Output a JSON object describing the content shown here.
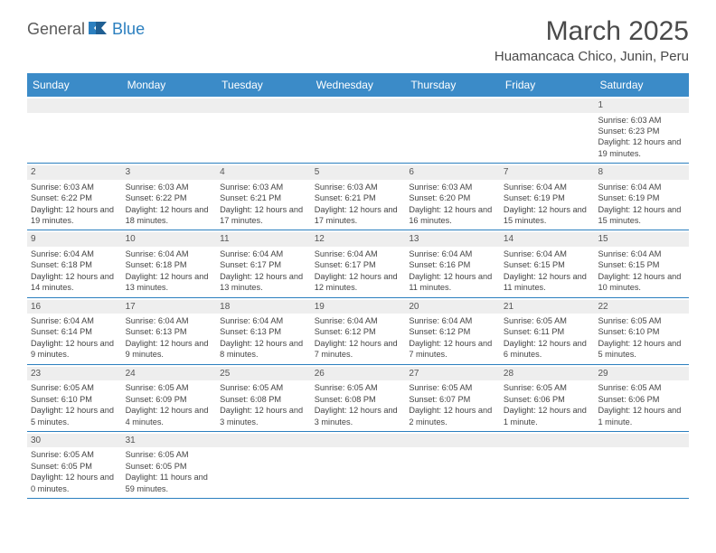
{
  "brand": {
    "part1": "General",
    "part2": "Blue"
  },
  "title": "March 2025",
  "location": "Huamancaca Chico, Junin, Peru",
  "colors": {
    "header_bg": "#3b8bc8",
    "header_text": "#ffffff",
    "rule": "#2b7fbf",
    "numrow_bg": "#eeeeee",
    "text": "#444444",
    "logo_gray": "#5a5a5a",
    "logo_blue": "#2b7fbf"
  },
  "dayNames": [
    "Sunday",
    "Monday",
    "Tuesday",
    "Wednesday",
    "Thursday",
    "Friday",
    "Saturday"
  ],
  "weeks": [
    [
      {
        "n": "",
        "sr": "",
        "ss": "",
        "dl": ""
      },
      {
        "n": "",
        "sr": "",
        "ss": "",
        "dl": ""
      },
      {
        "n": "",
        "sr": "",
        "ss": "",
        "dl": ""
      },
      {
        "n": "",
        "sr": "",
        "ss": "",
        "dl": ""
      },
      {
        "n": "",
        "sr": "",
        "ss": "",
        "dl": ""
      },
      {
        "n": "",
        "sr": "",
        "ss": "",
        "dl": ""
      },
      {
        "n": "1",
        "sr": "Sunrise: 6:03 AM",
        "ss": "Sunset: 6:23 PM",
        "dl": "Daylight: 12 hours and 19 minutes."
      }
    ],
    [
      {
        "n": "2",
        "sr": "Sunrise: 6:03 AM",
        "ss": "Sunset: 6:22 PM",
        "dl": "Daylight: 12 hours and 19 minutes."
      },
      {
        "n": "3",
        "sr": "Sunrise: 6:03 AM",
        "ss": "Sunset: 6:22 PM",
        "dl": "Daylight: 12 hours and 18 minutes."
      },
      {
        "n": "4",
        "sr": "Sunrise: 6:03 AM",
        "ss": "Sunset: 6:21 PM",
        "dl": "Daylight: 12 hours and 17 minutes."
      },
      {
        "n": "5",
        "sr": "Sunrise: 6:03 AM",
        "ss": "Sunset: 6:21 PM",
        "dl": "Daylight: 12 hours and 17 minutes."
      },
      {
        "n": "6",
        "sr": "Sunrise: 6:03 AM",
        "ss": "Sunset: 6:20 PM",
        "dl": "Daylight: 12 hours and 16 minutes."
      },
      {
        "n": "7",
        "sr": "Sunrise: 6:04 AM",
        "ss": "Sunset: 6:19 PM",
        "dl": "Daylight: 12 hours and 15 minutes."
      },
      {
        "n": "8",
        "sr": "Sunrise: 6:04 AM",
        "ss": "Sunset: 6:19 PM",
        "dl": "Daylight: 12 hours and 15 minutes."
      }
    ],
    [
      {
        "n": "9",
        "sr": "Sunrise: 6:04 AM",
        "ss": "Sunset: 6:18 PM",
        "dl": "Daylight: 12 hours and 14 minutes."
      },
      {
        "n": "10",
        "sr": "Sunrise: 6:04 AM",
        "ss": "Sunset: 6:18 PM",
        "dl": "Daylight: 12 hours and 13 minutes."
      },
      {
        "n": "11",
        "sr": "Sunrise: 6:04 AM",
        "ss": "Sunset: 6:17 PM",
        "dl": "Daylight: 12 hours and 13 minutes."
      },
      {
        "n": "12",
        "sr": "Sunrise: 6:04 AM",
        "ss": "Sunset: 6:17 PM",
        "dl": "Daylight: 12 hours and 12 minutes."
      },
      {
        "n": "13",
        "sr": "Sunrise: 6:04 AM",
        "ss": "Sunset: 6:16 PM",
        "dl": "Daylight: 12 hours and 11 minutes."
      },
      {
        "n": "14",
        "sr": "Sunrise: 6:04 AM",
        "ss": "Sunset: 6:15 PM",
        "dl": "Daylight: 12 hours and 11 minutes."
      },
      {
        "n": "15",
        "sr": "Sunrise: 6:04 AM",
        "ss": "Sunset: 6:15 PM",
        "dl": "Daylight: 12 hours and 10 minutes."
      }
    ],
    [
      {
        "n": "16",
        "sr": "Sunrise: 6:04 AM",
        "ss": "Sunset: 6:14 PM",
        "dl": "Daylight: 12 hours and 9 minutes."
      },
      {
        "n": "17",
        "sr": "Sunrise: 6:04 AM",
        "ss": "Sunset: 6:13 PM",
        "dl": "Daylight: 12 hours and 9 minutes."
      },
      {
        "n": "18",
        "sr": "Sunrise: 6:04 AM",
        "ss": "Sunset: 6:13 PM",
        "dl": "Daylight: 12 hours and 8 minutes."
      },
      {
        "n": "19",
        "sr": "Sunrise: 6:04 AM",
        "ss": "Sunset: 6:12 PM",
        "dl": "Daylight: 12 hours and 7 minutes."
      },
      {
        "n": "20",
        "sr": "Sunrise: 6:04 AM",
        "ss": "Sunset: 6:12 PM",
        "dl": "Daylight: 12 hours and 7 minutes."
      },
      {
        "n": "21",
        "sr": "Sunrise: 6:05 AM",
        "ss": "Sunset: 6:11 PM",
        "dl": "Daylight: 12 hours and 6 minutes."
      },
      {
        "n": "22",
        "sr": "Sunrise: 6:05 AM",
        "ss": "Sunset: 6:10 PM",
        "dl": "Daylight: 12 hours and 5 minutes."
      }
    ],
    [
      {
        "n": "23",
        "sr": "Sunrise: 6:05 AM",
        "ss": "Sunset: 6:10 PM",
        "dl": "Daylight: 12 hours and 5 minutes."
      },
      {
        "n": "24",
        "sr": "Sunrise: 6:05 AM",
        "ss": "Sunset: 6:09 PM",
        "dl": "Daylight: 12 hours and 4 minutes."
      },
      {
        "n": "25",
        "sr": "Sunrise: 6:05 AM",
        "ss": "Sunset: 6:08 PM",
        "dl": "Daylight: 12 hours and 3 minutes."
      },
      {
        "n": "26",
        "sr": "Sunrise: 6:05 AM",
        "ss": "Sunset: 6:08 PM",
        "dl": "Daylight: 12 hours and 3 minutes."
      },
      {
        "n": "27",
        "sr": "Sunrise: 6:05 AM",
        "ss": "Sunset: 6:07 PM",
        "dl": "Daylight: 12 hours and 2 minutes."
      },
      {
        "n": "28",
        "sr": "Sunrise: 6:05 AM",
        "ss": "Sunset: 6:06 PM",
        "dl": "Daylight: 12 hours and 1 minute."
      },
      {
        "n": "29",
        "sr": "Sunrise: 6:05 AM",
        "ss": "Sunset: 6:06 PM",
        "dl": "Daylight: 12 hours and 1 minute."
      }
    ],
    [
      {
        "n": "30",
        "sr": "Sunrise: 6:05 AM",
        "ss": "Sunset: 6:05 PM",
        "dl": "Daylight: 12 hours and 0 minutes."
      },
      {
        "n": "31",
        "sr": "Sunrise: 6:05 AM",
        "ss": "Sunset: 6:05 PM",
        "dl": "Daylight: 11 hours and 59 minutes."
      },
      {
        "n": "",
        "sr": "",
        "ss": "",
        "dl": ""
      },
      {
        "n": "",
        "sr": "",
        "ss": "",
        "dl": ""
      },
      {
        "n": "",
        "sr": "",
        "ss": "",
        "dl": ""
      },
      {
        "n": "",
        "sr": "",
        "ss": "",
        "dl": ""
      },
      {
        "n": "",
        "sr": "",
        "ss": "",
        "dl": ""
      }
    ]
  ]
}
